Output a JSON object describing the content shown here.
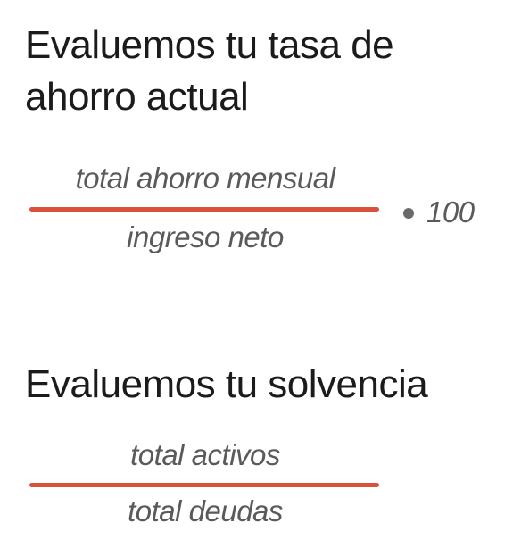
{
  "section_savings": {
    "title": "Evaluemos tu tasa de ahorro actual",
    "numerator": "total ahorro mensual",
    "denominator": "ingreso neto",
    "multiplier": "100"
  },
  "section_solvency": {
    "title": "Evaluemos tu solvencia",
    "numerator": "total activos",
    "denominator": "total deudas"
  },
  "colors": {
    "fraction_bar": "#d9503b",
    "formula_text": "#5a5a5a",
    "heading_text": "#1b1b1b"
  }
}
